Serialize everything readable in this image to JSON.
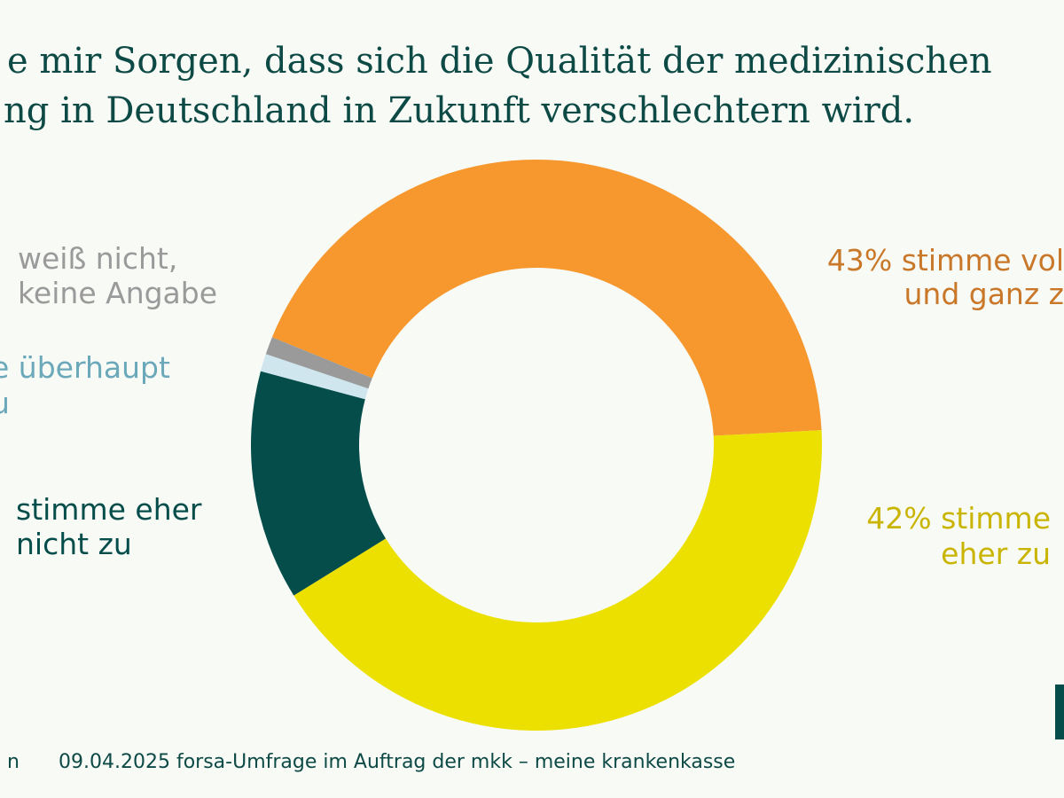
{
  "chart_data": {
    "type": "donut",
    "title": [
      "e mir Sorgen, dass sich die Qualität der medizinischen",
      "ng in Deutschland in Zukunft verschlechtern wird."
    ],
    "categories": [
      [
        "43% stimme vol",
        "und ganz z"
      ],
      [
        "42% stimme",
        "eher zu"
      ],
      [
        "stimme eher",
        "nicht zu"
      ],
      [
        "e überhaupt",
        "u"
      ],
      [
        "weiß nicht,",
        "keine Angabe"
      ]
    ],
    "values": [
      43,
      42,
      13,
      1,
      1
    ],
    "colors": [
      "#f7982f",
      "#ece000",
      "#054d4a",
      "#cfe6ee",
      "#9a9a9a"
    ],
    "label_colors": [
      "#c9782a",
      "#c9b400",
      "#054d4a",
      "#6aa8ba",
      "#9a9a9a"
    ],
    "footer": [
      "n",
      "09.04.2025 forsa-Umfrage im Auftrag der mkk – meine krankenkasse"
    ]
  }
}
